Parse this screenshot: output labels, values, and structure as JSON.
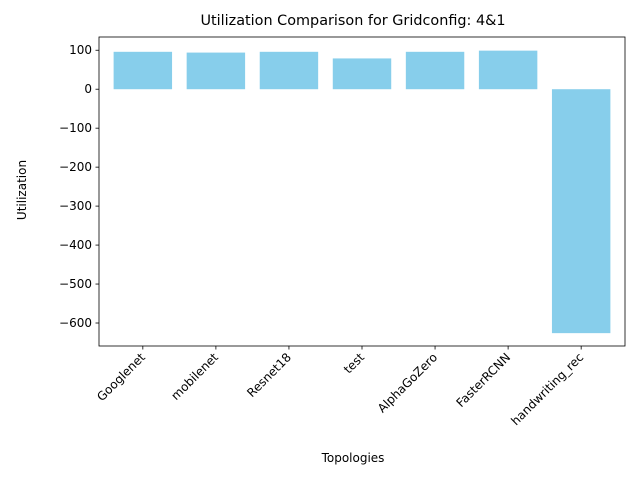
{
  "chart_data": {
    "type": "bar",
    "title": "Utilization Comparison for Gridconfig: 4&1",
    "xlabel": "Topologies",
    "ylabel": "Utilization",
    "categories": [
      "Googlenet",
      "mobilenet",
      "Resnet18",
      "test",
      "AlphaGoZero",
      "FasterRCNN",
      "handwriting_rec"
    ],
    "values": [
      96,
      94,
      96,
      79,
      96,
      99,
      -626
    ],
    "ylim": [
      -659,
      134
    ],
    "yticks": [
      -600,
      -500,
      -400,
      -300,
      -200,
      -100,
      0,
      100
    ],
    "ytick_labels": [
      "−600",
      "−500",
      "−400",
      "−300",
      "−200",
      "−100",
      "0",
      "100"
    ],
    "bar_color": "#87ceeb",
    "grid": false,
    "legend": "none"
  }
}
